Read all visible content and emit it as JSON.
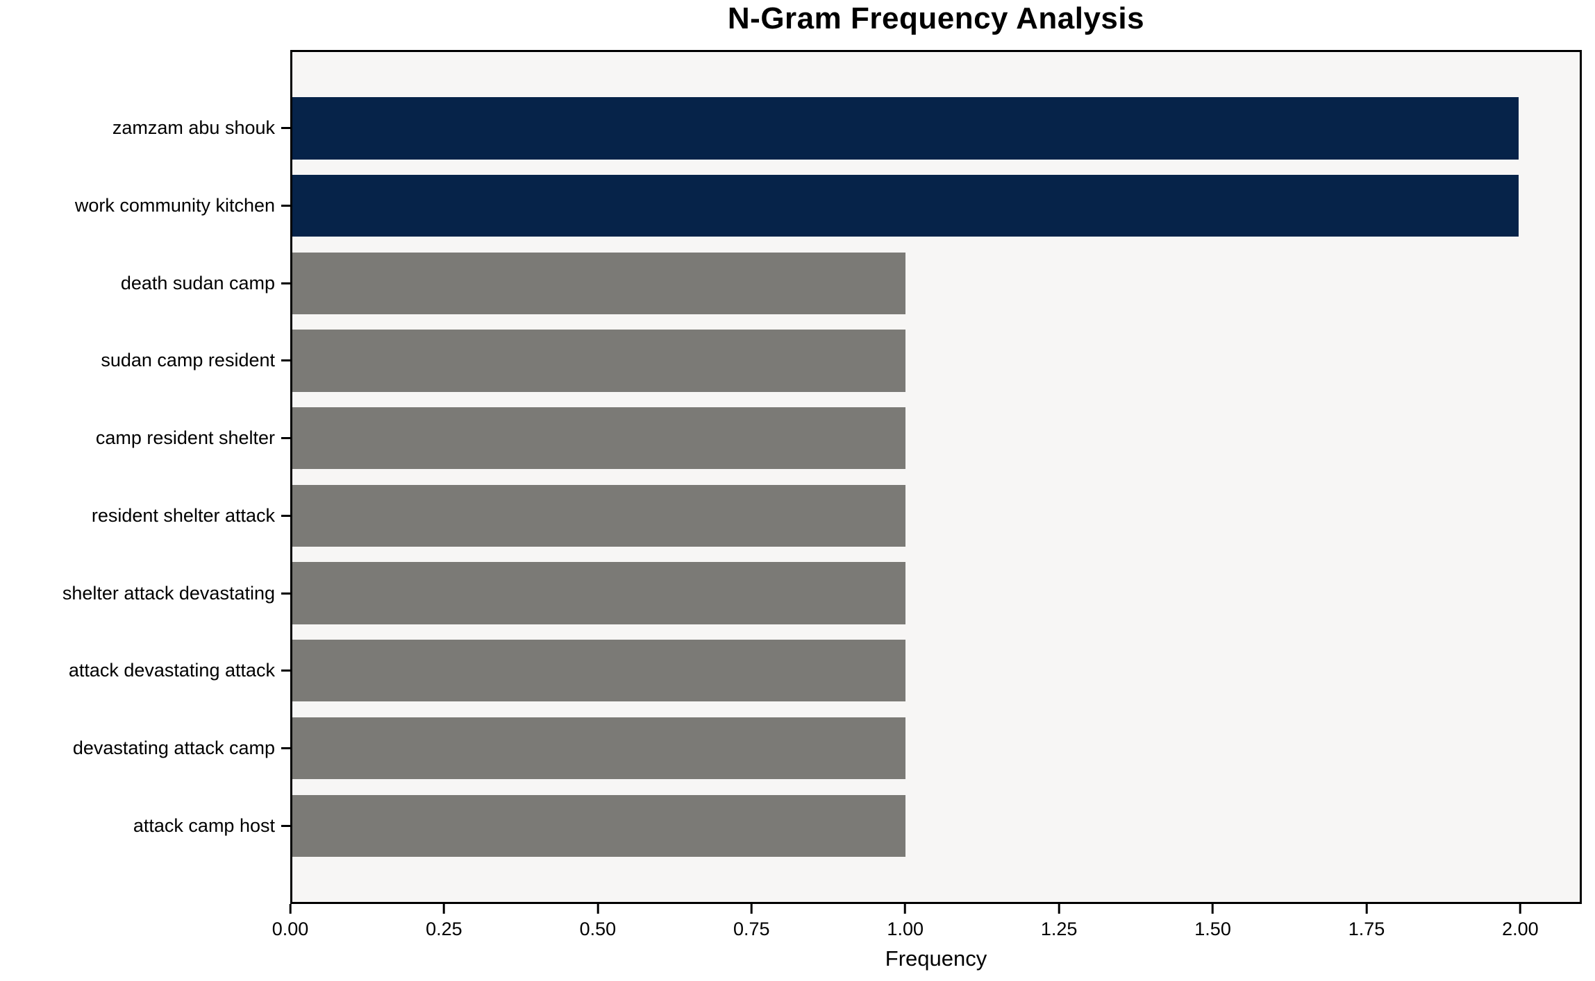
{
  "chart_data": {
    "type": "bar",
    "orientation": "horizontal",
    "title": "N-Gram Frequency Analysis",
    "xlabel": "Frequency",
    "ylabel": "",
    "categories": [
      "zamzam abu shouk",
      "work community kitchen",
      "death sudan camp",
      "sudan camp resident",
      "camp resident shelter",
      "resident shelter attack",
      "shelter attack devastating",
      "attack devastating attack",
      "devastating attack camp",
      "attack camp host"
    ],
    "values": [
      2,
      2,
      1,
      1,
      1,
      1,
      1,
      1,
      1,
      1
    ],
    "bar_colors": [
      "#062349",
      "#062349",
      "#7b7a76",
      "#7b7a76",
      "#7b7a76",
      "#7b7a76",
      "#7b7a76",
      "#7b7a76",
      "#7b7a76",
      "#7b7a76"
    ],
    "xlim": [
      0,
      2.1
    ],
    "xtick_values": [
      0,
      0.25,
      0.5,
      0.75,
      1.0,
      1.25,
      1.5,
      1.75,
      2.0
    ],
    "xtick_labels": [
      "0.00",
      "0.25",
      "0.50",
      "0.75",
      "1.00",
      "1.25",
      "1.50",
      "1.75",
      "2.00"
    ],
    "grid": false,
    "legend": null,
    "colors": {
      "highlight_bar": "#062349",
      "default_bar": "#7b7a76",
      "plot_background": "#f7f6f5",
      "figure_background": "#ffffff",
      "axis_and_text": "#000000"
    }
  }
}
